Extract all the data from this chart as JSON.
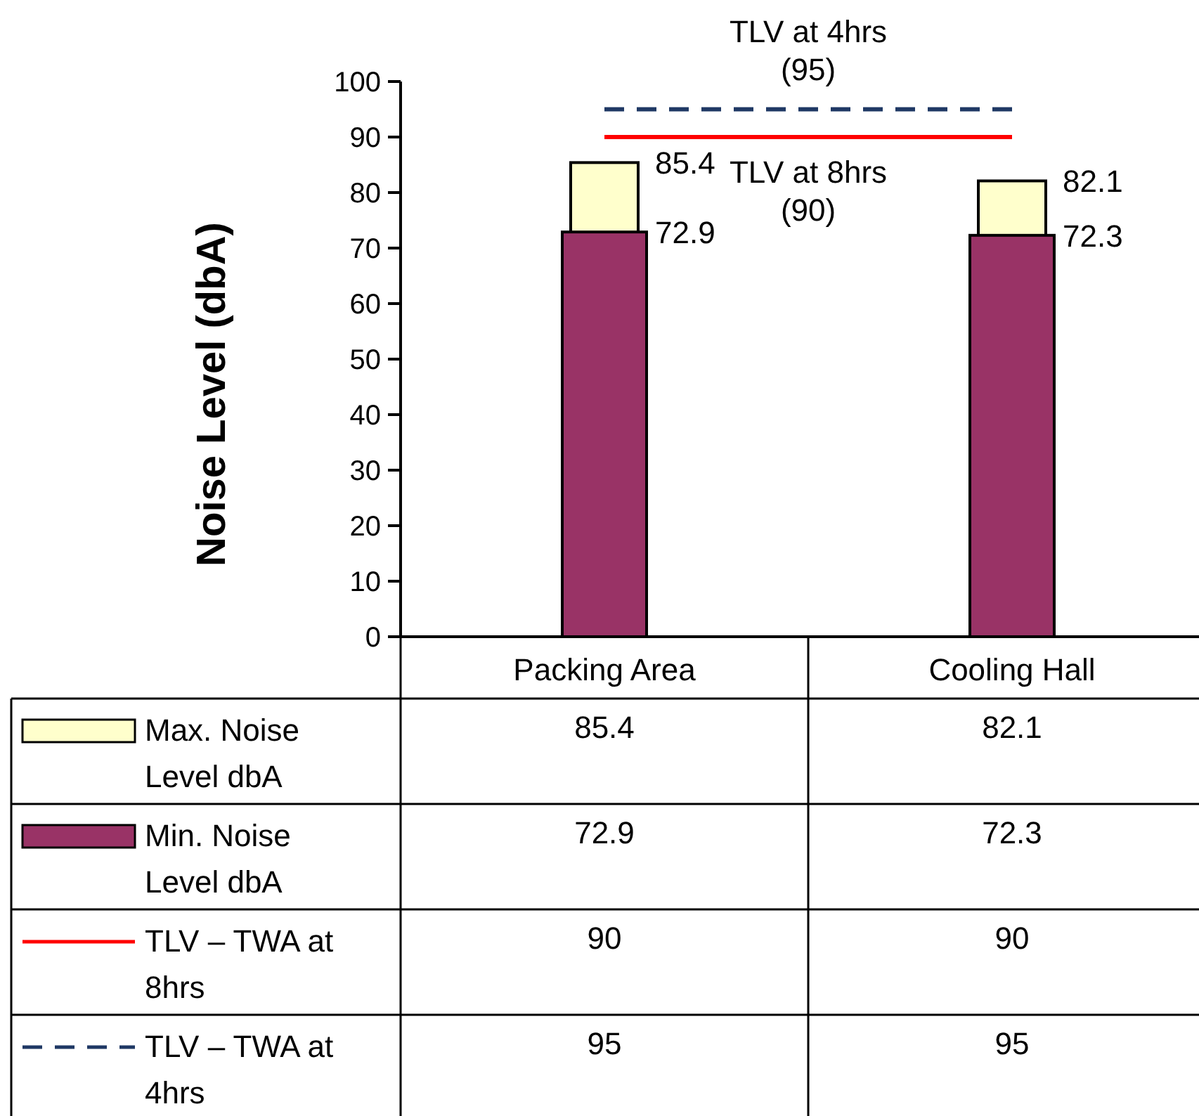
{
  "chart_data": {
    "type": "bar",
    "ylabel": "Noise Level (dbA)",
    "categories": [
      "Packing Area",
      "Cooling Hall"
    ],
    "series": [
      {
        "name": "Max. Noise Level dbA",
        "color": "#ffffcc",
        "values": [
          85.4,
          82.1
        ]
      },
      {
        "name": "Min. Noise Level dbA",
        "color": "#993366",
        "values": [
          72.9,
          72.3
        ]
      },
      {
        "name": "TLV – TWA at 8hrs",
        "type": "line",
        "color": "#ff0000",
        "line_style": "solid",
        "values": [
          90,
          90
        ]
      },
      {
        "name": "TLV – TWA at 4hrs",
        "type": "line",
        "color": "#1f3864",
        "line_style": "dashed",
        "values": [
          95,
          95
        ]
      }
    ],
    "ylim": [
      0,
      100
    ],
    "yticks": [
      0,
      10,
      20,
      30,
      40,
      50,
      60,
      70,
      80,
      90,
      100
    ],
    "annotations": [
      "TLV at 4hrs\n(95)",
      "TLV at 8hrs\n(90)",
      {
        "text": "85.4",
        "x": "Packing Area",
        "y": 85.4
      },
      {
        "text": "72.9",
        "x": "Packing Area",
        "y": 72.9
      },
      {
        "text": "82.1",
        "x": "Cooling Hall",
        "y": 82.1
      },
      {
        "text": "72.3",
        "x": "Cooling Hall",
        "y": 72.3
      }
    ],
    "data_labels": true,
    "legend": "bottom left",
    "grid": false
  }
}
